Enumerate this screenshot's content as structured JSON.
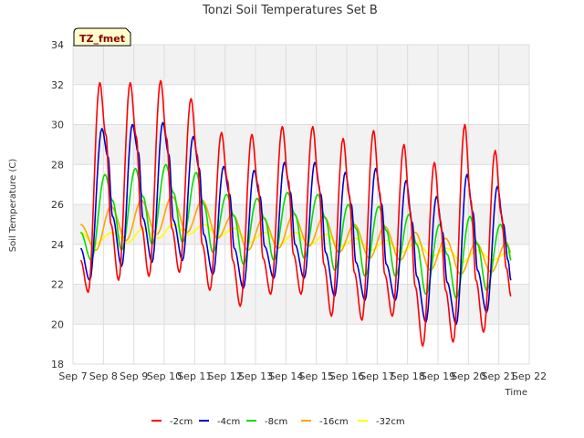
{
  "chart_data": {
    "type": "line",
    "title": "Tonzi Soil Temperatures Set B",
    "xlabel": "Time",
    "ylabel": "Soil Temperature (C)",
    "ylim": [
      18,
      34
    ],
    "xlim": [
      7,
      22
    ],
    "yticks": [
      "18",
      "20",
      "22",
      "24",
      "26",
      "28",
      "30",
      "32",
      "34"
    ],
    "xticks": [
      {
        "v": 7,
        "label": "Sep 7"
      },
      {
        "v": 8,
        "label": "Sep 8"
      },
      {
        "v": 9,
        "label": "Sep 9"
      },
      {
        "v": 10,
        "label": "Sep 10"
      },
      {
        "v": 11,
        "label": "Sep 11"
      },
      {
        "v": 12,
        "label": "Sep 12"
      },
      {
        "v": 13,
        "label": "Sep 13"
      },
      {
        "v": 14,
        "label": "Sep 14"
      },
      {
        "v": 15,
        "label": "Sep 15"
      },
      {
        "v": 16,
        "label": "Sep 16"
      },
      {
        "v": 17,
        "label": "Sep 17"
      },
      {
        "v": 18,
        "label": "Sep 18"
      },
      {
        "v": 19,
        "label": "Sep 19"
      },
      {
        "v": 20,
        "label": "Sep 20"
      },
      {
        "v": 21,
        "label": "Sep 21"
      },
      {
        "v": 22,
        "label": "Sep 22"
      }
    ],
    "grid": true,
    "legend_position": "bottom",
    "tag_label": "TZ_fmet",
    "series": [
      {
        "name": "-2cm",
        "color": "#ff0000",
        "x": [
          7.25,
          7.5,
          7.88,
          8.08,
          8.25,
          8.5,
          8.88,
          9.08,
          9.25,
          9.5,
          9.88,
          10.08,
          10.25,
          10.5,
          10.88,
          11.08,
          11.25,
          11.5,
          11.88,
          12.08,
          12.25,
          12.5,
          12.88,
          13.08,
          13.25,
          13.5,
          13.88,
          14.08,
          14.25,
          14.5,
          14.88,
          15.08,
          15.25,
          15.5,
          15.88,
          16.08,
          16.25,
          16.5,
          16.88,
          17.08,
          17.25,
          17.5,
          17.88,
          18.08,
          18.25,
          18.5,
          18.88,
          19.08,
          19.25,
          19.5,
          19.88,
          20.08,
          20.25,
          20.5,
          20.88,
          21.08,
          21.25,
          21.4
        ],
        "y": [
          23.2,
          21.6,
          32.1,
          29.5,
          25.0,
          22.2,
          32.1,
          29.4,
          24.9,
          22.4,
          32.2,
          29.3,
          24.8,
          22.6,
          31.3,
          28.5,
          24.0,
          21.7,
          29.6,
          27.2,
          23.2,
          20.9,
          29.5,
          27.0,
          23.3,
          21.5,
          29.9,
          27.2,
          23.5,
          21.5,
          29.9,
          27.0,
          23.0,
          20.4,
          29.3,
          26.5,
          22.6,
          20.2,
          29.7,
          26.6,
          22.5,
          20.4,
          29.0,
          25.7,
          21.9,
          18.9,
          28.1,
          25.2,
          21.7,
          19.1,
          30.0,
          26.2,
          22.2,
          19.6,
          28.7,
          25.5,
          22.8,
          21.4
        ]
      },
      {
        "name": "-4cm",
        "color": "#0000cc",
        "x": [
          7.25,
          7.55,
          7.95,
          8.15,
          8.3,
          8.6,
          8.95,
          9.15,
          9.3,
          9.6,
          9.95,
          10.15,
          10.3,
          10.6,
          10.95,
          11.15,
          11.3,
          11.6,
          11.95,
          12.15,
          12.3,
          12.6,
          12.95,
          13.15,
          13.3,
          13.6,
          13.95,
          14.15,
          14.3,
          14.6,
          14.95,
          15.15,
          15.3,
          15.6,
          15.95,
          16.15,
          16.3,
          16.6,
          16.95,
          17.15,
          17.3,
          17.6,
          17.95,
          18.15,
          18.3,
          18.6,
          18.95,
          19.15,
          19.3,
          19.6,
          19.95,
          20.15,
          20.3,
          20.6,
          20.95,
          21.15,
          21.3,
          21.4
        ],
        "y": [
          23.8,
          22.2,
          29.8,
          28.4,
          25.4,
          22.9,
          30.0,
          28.6,
          25.3,
          23.1,
          30.1,
          28.5,
          25.2,
          23.2,
          29.4,
          27.8,
          24.5,
          22.5,
          27.9,
          26.5,
          23.8,
          21.8,
          27.7,
          26.4,
          23.9,
          22.3,
          28.1,
          26.6,
          24.0,
          22.3,
          28.1,
          26.5,
          23.6,
          21.4,
          27.6,
          26.0,
          23.1,
          21.2,
          27.8,
          26.0,
          23.0,
          21.2,
          27.2,
          25.1,
          22.4,
          20.1,
          26.4,
          24.6,
          22.1,
          20.0,
          27.5,
          25.6,
          22.7,
          20.6,
          26.9,
          25.0,
          23.2,
          22.2
        ]
      },
      {
        "name": "-8cm",
        "color": "#00dd00",
        "x": [
          7.25,
          7.6,
          8.05,
          8.3,
          8.6,
          9.05,
          9.3,
          9.6,
          10.05,
          10.3,
          10.6,
          11.05,
          11.3,
          11.6,
          12.05,
          12.3,
          12.6,
          13.05,
          13.3,
          13.6,
          14.05,
          14.3,
          14.6,
          15.05,
          15.3,
          15.6,
          16.05,
          16.3,
          16.6,
          17.05,
          17.3,
          17.6,
          18.05,
          18.3,
          18.6,
          19.05,
          19.3,
          19.6,
          20.05,
          20.3,
          20.6,
          21.05,
          21.3,
          21.4
        ],
        "y": [
          24.6,
          23.2,
          27.5,
          26.2,
          23.7,
          27.8,
          26.4,
          24.0,
          28.0,
          26.6,
          24.1,
          27.6,
          26.0,
          23.6,
          26.5,
          25.4,
          23.0,
          26.3,
          25.3,
          23.2,
          26.6,
          25.5,
          23.3,
          26.5,
          25.3,
          22.7,
          26.0,
          24.8,
          22.4,
          25.9,
          24.7,
          22.4,
          25.5,
          24.0,
          21.5,
          25.0,
          23.5,
          21.3,
          25.4,
          24.0,
          21.7,
          25.0,
          23.9,
          23.2
        ]
      },
      {
        "name": "-16cm",
        "color": "#ffa500",
        "x": [
          7.25,
          7.75,
          8.25,
          8.75,
          9.25,
          9.75,
          10.25,
          10.75,
          11.25,
          11.75,
          12.25,
          12.75,
          13.25,
          13.75,
          14.25,
          14.75,
          15.25,
          15.75,
          16.25,
          16.75,
          17.25,
          17.75,
          18.25,
          18.75,
          19.25,
          19.75,
          20.25,
          20.75,
          21.25,
          21.4
        ],
        "y": [
          25.0,
          23.7,
          25.9,
          24.2,
          26.2,
          24.5,
          26.4,
          24.6,
          26.2,
          24.3,
          25.5,
          23.7,
          25.3,
          23.8,
          25.5,
          23.9,
          25.4,
          23.6,
          25.0,
          23.3,
          24.9,
          23.2,
          24.6,
          22.7,
          24.3,
          22.5,
          24.1,
          22.6,
          24.1,
          23.6
        ]
      },
      {
        "name": "-32cm",
        "color": "#ffff00",
        "x": [
          7.25,
          7.7,
          8.3,
          8.8,
          9.3,
          9.8,
          10.3,
          10.8,
          11.3,
          11.8,
          12.3,
          12.8,
          13.3,
          13.8,
          14.3,
          14.8,
          15.3,
          15.8,
          16.3,
          16.8,
          17.3,
          17.8,
          18.3,
          18.8,
          19.3,
          19.8,
          20.3,
          20.8,
          21.3,
          21.4
        ],
        "y": [
          24.6,
          24.0,
          24.6,
          24.1,
          24.8,
          24.3,
          25.0,
          24.5,
          25.0,
          24.4,
          24.8,
          24.1,
          24.6,
          24.0,
          24.6,
          24.0,
          24.5,
          23.9,
          24.3,
          23.7,
          24.2,
          23.6,
          24.1,
          23.4,
          23.8,
          23.1,
          23.7,
          23.2,
          23.6,
          23.5
        ]
      }
    ]
  }
}
